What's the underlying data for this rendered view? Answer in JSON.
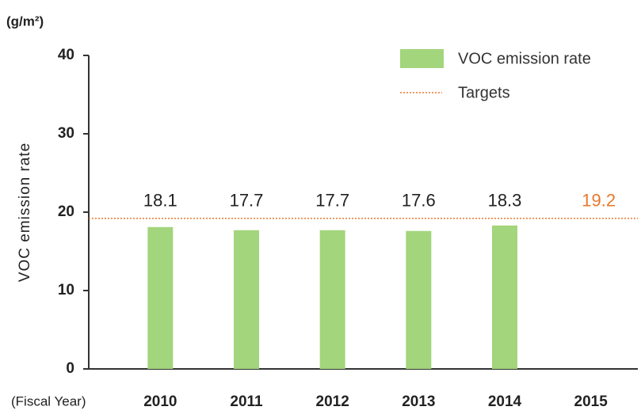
{
  "chart_data": {
    "type": "bar",
    "unit_label": "(g/m²)",
    "y_axis_label": "VOC emission rate",
    "x_axis_label": "(Fiscal Year)",
    "categories": [
      "2010",
      "2011",
      "2012",
      "2013",
      "2014",
      "2015"
    ],
    "series": [
      {
        "name": "VOC emission rate",
        "color": "#a3d57c",
        "values": [
          18.1,
          17.7,
          17.7,
          17.6,
          18.3,
          null
        ]
      }
    ],
    "target": {
      "name": "Targets",
      "color": "#e8792d",
      "value": 19.2
    },
    "ylim": [
      0,
      40
    ],
    "yticks": [
      0,
      10,
      20,
      30,
      40
    ],
    "legend": "top-right"
  }
}
